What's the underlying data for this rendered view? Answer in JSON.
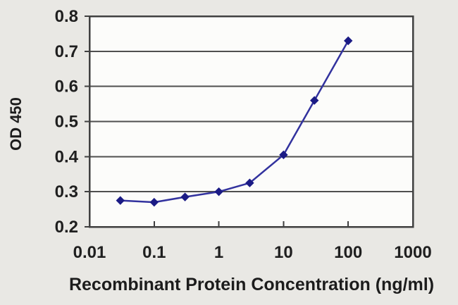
{
  "figure": {
    "kind": "elisa-standard-curve"
  },
  "chart_data": {
    "type": "line",
    "title": "",
    "xlabel": "Recombinant Protein Concentration (ng/ml)",
    "ylabel": "OD 450",
    "x_scale": "log",
    "xlim": [
      0.01,
      1000
    ],
    "ylim": [
      0.2,
      0.8
    ],
    "x_ticks": [
      0.01,
      0.1,
      1,
      10,
      100,
      1000
    ],
    "x_tick_labels": [
      "0.01",
      "0.1",
      "1",
      "10",
      "100",
      "1000"
    ],
    "y_ticks": [
      0.2,
      0.3,
      0.4,
      0.5,
      0.6,
      0.7,
      0.8
    ],
    "y_tick_labels": [
      "0.2",
      "0.3",
      "0.4",
      "0.5",
      "0.6",
      "0.7",
      "0.8"
    ],
    "grid": "horizontal",
    "legend": "none",
    "series": [
      {
        "name": "OD 450",
        "marker": "diamond",
        "x": [
          0.03,
          0.1,
          0.3,
          1,
          3,
          10,
          30,
          100
        ],
        "y": [
          0.275,
          0.27,
          0.285,
          0.3,
          0.325,
          0.405,
          0.56,
          0.73
        ]
      }
    ]
  },
  "colors": {
    "page_background": "#e9e8e4",
    "plot_background": "#fcfcfa",
    "border": "#404040",
    "grid": "#4f4f4f",
    "tick": "#404040",
    "text": "#1f1f1f",
    "series_line": "#32329e",
    "series_marker": "#1b1b85"
  }
}
